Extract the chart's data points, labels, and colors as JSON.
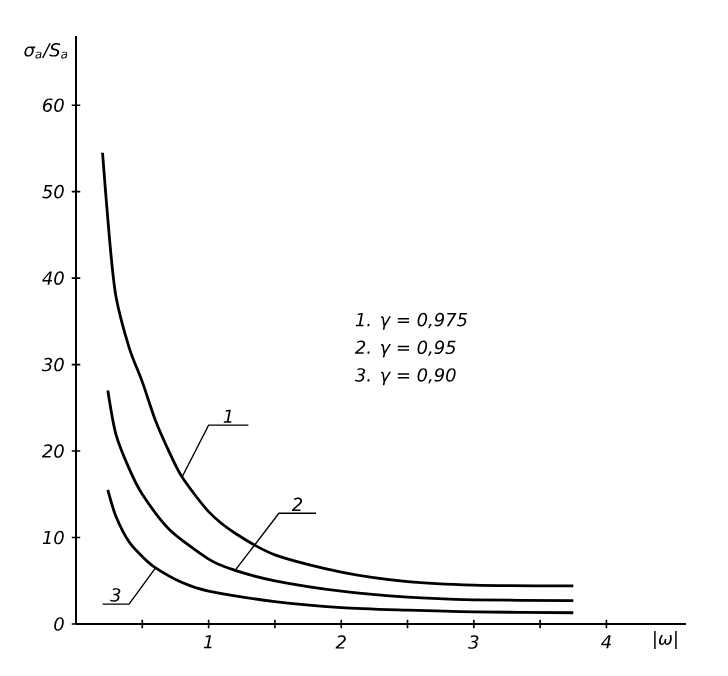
{
  "chart_data": {
    "type": "line",
    "xlabel": "|ω|",
    "ylabel": "σ$_{a}$/S$_{a}$",
    "xlim": [
      0,
      4.6
    ],
    "ylim": [
      0,
      68
    ],
    "xticks": [
      {
        "value": 0.5,
        "label": null
      },
      1,
      {
        "value": 1.5,
        "label": null
      },
      2,
      {
        "value": 2.5,
        "label": null
      },
      3,
      {
        "value": 3.5,
        "label": null
      },
      4
    ],
    "yticks": [
      0,
      10,
      20,
      30,
      40,
      50,
      60
    ],
    "annotations": [
      "1.  γ = 0,975",
      "2.  γ = 0,95",
      "3.  γ = 0,90",
      {
        "text": "1",
        "x": 0.8,
        "y": 17
      },
      {
        "text": "2",
        "x": 1.2,
        "y": 6.2
      },
      {
        "text": "3",
        "x": 0.6,
        "y": 6.5
      }
    ],
    "grid": false,
    "marker": "none",
    "line_style": "solid",
    "series": [
      {
        "color": "#000000",
        "x": [
          0.2,
          0.25,
          0.3,
          0.4,
          0.5,
          0.6,
          0.7,
          0.8,
          1.0,
          1.2,
          1.5,
          2.0,
          2.5,
          3.0,
          3.75
        ],
        "values": [
          54.5,
          45,
          38,
          32,
          28,
          23.5,
          20,
          17,
          13,
          10.5,
          8,
          6,
          4.9,
          4.5,
          4.4
        ]
      },
      {
        "color": "#000000",
        "x": [
          0.24,
          0.3,
          0.4,
          0.5,
          0.7,
          1.0,
          1.2,
          1.5,
          2.0,
          2.5,
          3.0,
          3.75
        ],
        "values": [
          27,
          22,
          18,
          15,
          11,
          7.5,
          6.2,
          5,
          3.8,
          3.1,
          2.8,
          2.7
        ]
      },
      {
        "color": "#000000",
        "x": [
          0.24,
          0.3,
          0.4,
          0.5,
          0.6,
          0.8,
          1.0,
          1.5,
          2.0,
          2.5,
          3.0,
          3.75
        ],
        "values": [
          15.5,
          12.5,
          9.5,
          7.8,
          6.5,
          4.8,
          3.8,
          2.6,
          1.9,
          1.6,
          1.4,
          1.3
        ]
      }
    ]
  }
}
